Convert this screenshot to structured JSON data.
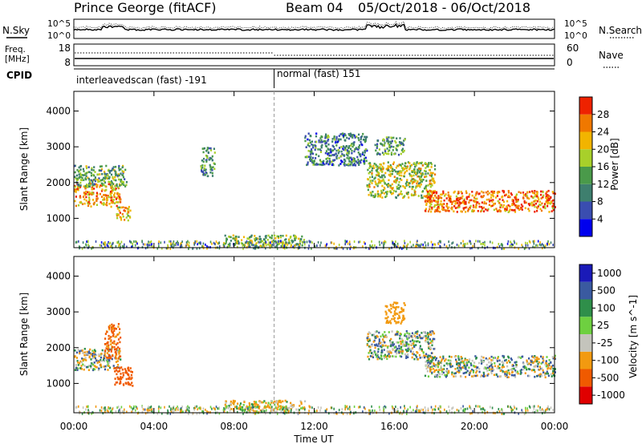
{
  "header": {
    "station": "Prince George (fitACF)",
    "beam": "Beam 04",
    "date_range": "05/Oct/2018 - 06/Oct/2018"
  },
  "noise_panel": {
    "left_label": "N.Sky",
    "right_label": "N.Search",
    "left_ticks": [
      "10^5",
      "10^0"
    ],
    "right_ticks": [
      "10^5",
      "10^0"
    ]
  },
  "freq_panel": {
    "left_label_1": "Freq.",
    "left_label_2": "[MHz]",
    "right_label": "Nave",
    "left_ticks": [
      "18",
      "8"
    ],
    "right_ticks": [
      "60",
      "0"
    ]
  },
  "cpid_panel": {
    "label": "CPID",
    "mode1": "interleavedscan (fast) -191",
    "mode2": "normal (fast) 151",
    "switch_hour": 10
  },
  "colors": {
    "power": [
      "#0000ee",
      "#3a4db0",
      "#3e7f6e",
      "#4a9a4a",
      "#a8d02a",
      "#f2b400",
      "#f07800",
      "#ee2200"
    ],
    "velocity": [
      "#e00000",
      "#f05a00",
      "#f29a10",
      "#c4c4bc",
      "#6ed040",
      "#2f8f4a",
      "#3a5aa0",
      "#1a1ab8"
    ]
  },
  "chart_data": [
    {
      "type": "heatmap",
      "name": "Power",
      "ylabel": "Slant Range [km]",
      "yticks": [
        "1000",
        "2000",
        "3000",
        "4000"
      ],
      "ylim": [
        180,
        4550
      ],
      "xlim": [
        0,
        24
      ],
      "colorbar_label": "Power [dB]",
      "colorbar_ticks": [
        "4",
        "8",
        "12",
        "16",
        "20",
        "24",
        "28"
      ],
      "colorbar_range": [
        0,
        32
      ],
      "regions": [
        {
          "label": "early band",
          "t": [
            0.0,
            2.3
          ],
          "range_km": [
            1350,
            2000
          ],
          "value_db": 24
        },
        {
          "label": "early band halo",
          "t": [
            0.0,
            2.6
          ],
          "range_km": [
            1900,
            2500
          ],
          "value_db": 14
        },
        {
          "label": "early patch",
          "t": [
            2.1,
            2.8
          ],
          "range_km": [
            950,
            1350
          ],
          "value_db": 22
        },
        {
          "label": "morning patch",
          "t": [
            6.3,
            7.0
          ],
          "range_km": [
            2200,
            3000
          ],
          "value_db": 12
        },
        {
          "label": "ground scatter",
          "t": [
            7.5,
            11.5
          ],
          "range_km": [
            250,
            550
          ],
          "value_db": 16
        },
        {
          "label": "afternoon arc",
          "t": [
            11.5,
            14.6
          ],
          "range_km": [
            2500,
            3400
          ],
          "value_db": 10
        },
        {
          "label": "evening band",
          "t": [
            14.6,
            18.0
          ],
          "range_km": [
            1600,
            2600
          ],
          "value_db": 18
        },
        {
          "label": "night band",
          "t": [
            17.5,
            24.0
          ],
          "range_km": [
            1200,
            1800
          ],
          "value_db": 26
        },
        {
          "label": "late patch",
          "t": [
            15.0,
            16.5
          ],
          "range_km": [
            2800,
            3300
          ],
          "value_db": 12
        }
      ]
    },
    {
      "type": "heatmap",
      "name": "Velocity",
      "ylabel": "Slant Range [km]",
      "yticks": [
        "1000",
        "2000",
        "3000",
        "4000"
      ],
      "ylim": [
        180,
        4550
      ],
      "xlim": [
        0,
        24
      ],
      "colorbar_label": "Velocity [m s^-1]",
      "colorbar_ticks": [
        "-1000",
        "-500",
        "-100",
        "-25",
        "25",
        "100",
        "500",
        "1000"
      ],
      "regions": [
        {
          "label": "early band",
          "t": [
            0.0,
            2.3
          ],
          "range_km": [
            1400,
            2000
          ],
          "value_ms": 0
        },
        {
          "label": "early westward",
          "t": [
            1.5,
            2.3
          ],
          "range_km": [
            1700,
            2700
          ],
          "value_ms": -600
        },
        {
          "label": "early patch",
          "t": [
            2.0,
            2.9
          ],
          "range_km": [
            950,
            1500
          ],
          "value_ms": -700
        },
        {
          "label": "ground scatter",
          "t": [
            7.5,
            11.5
          ],
          "range_km": [
            250,
            550
          ],
          "value_ms": -150
        },
        {
          "label": "evening band",
          "t": [
            14.6,
            18.0
          ],
          "range_km": [
            1700,
            2500
          ],
          "value_ms": 0
        },
        {
          "label": "night band",
          "t": [
            17.5,
            24.0
          ],
          "range_km": [
            1200,
            1800
          ],
          "value_ms": 0
        },
        {
          "label": "late patch",
          "t": [
            15.5,
            16.5
          ],
          "range_km": [
            2700,
            3300
          ],
          "value_ms": -300
        }
      ]
    }
  ],
  "xaxis": {
    "label": "Time UT",
    "ticks": [
      "00:00",
      "04:00",
      "08:00",
      "12:00",
      "16:00",
      "20:00",
      "00:00"
    ],
    "tick_hours": [
      0,
      4,
      8,
      12,
      16,
      20,
      24
    ]
  }
}
